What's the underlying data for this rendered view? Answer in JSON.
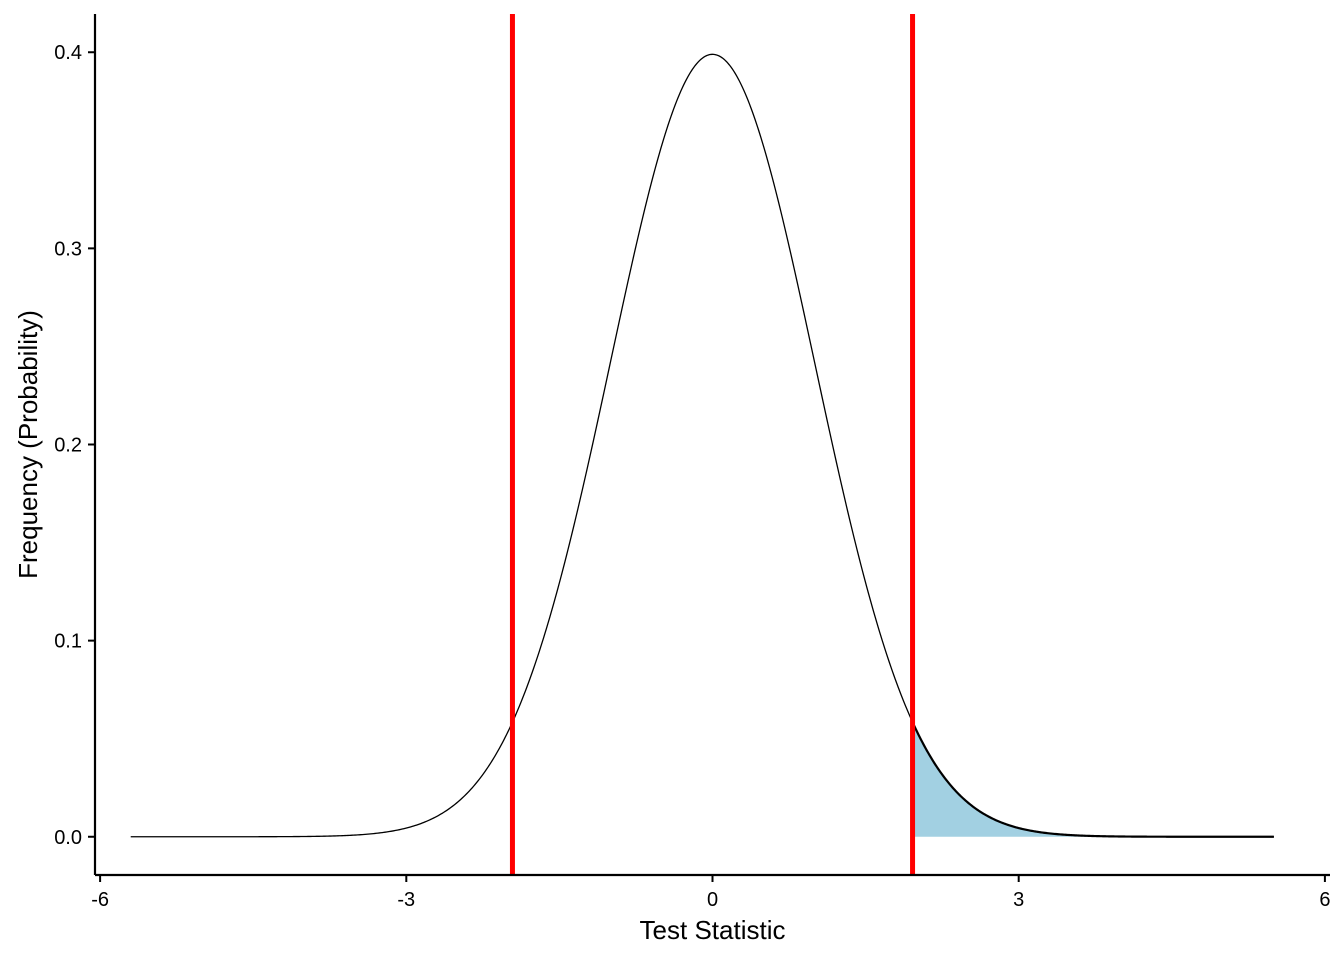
{
  "chart_data": {
    "type": "area",
    "title": "",
    "xlabel": "Test Statistic",
    "ylabel": "Frequency (Probability)",
    "xlim": [
      -6.05,
      6.05
    ],
    "ylim": [
      -0.0195,
      0.4195
    ],
    "x_ticks": [
      -6,
      -3,
      0,
      3,
      6
    ],
    "x_tick_labels": [
      "-6",
      "-3",
      "0",
      "3",
      "6"
    ],
    "y_ticks": [
      0.0,
      0.1,
      0.2,
      0.3,
      0.4
    ],
    "y_tick_labels": [
      "0.0",
      "0.1",
      "0.2",
      "0.3",
      "0.4"
    ],
    "grid": false,
    "series": [
      {
        "kind": "density-curve",
        "distribution": "standard normal",
        "x_range": [
          -5.7,
          5.5
        ],
        "peak": {
          "x": 0,
          "y": 0.399
        }
      }
    ],
    "shaded_region": {
      "x_from": 1.96,
      "x_to": 5.5,
      "color": "#a2d0e2"
    },
    "critical_lines": {
      "x": [
        -1.96,
        1.96
      ],
      "color": "#ff0000"
    }
  }
}
